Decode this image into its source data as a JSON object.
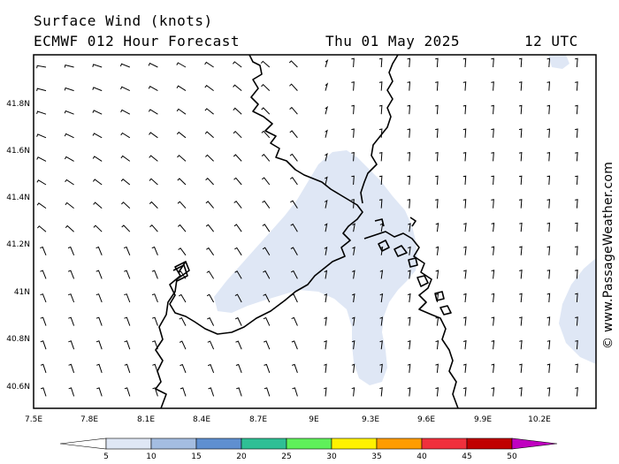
{
  "title": {
    "line1": "Surface Wind (knots)",
    "line2": "ECMWF 012 Hour Forecast",
    "date": "Thu 01 May 2025",
    "time": "12 UTC"
  },
  "axes": {
    "lon_labels": [
      "7.5E",
      "7.8E",
      "8.1E",
      "8.4E",
      "8.7E",
      "9E",
      "9.3E",
      "9.6E",
      "9.9E",
      "10.2E"
    ],
    "lat_labels": [
      "41.8N",
      "41.6N",
      "41.4N",
      "41.2N",
      "41N",
      "40.8N",
      "40.6N"
    ]
  },
  "legend": {
    "labels": [
      "5",
      "10",
      "15",
      "20",
      "25",
      "30",
      "35",
      "40",
      "45",
      "50"
    ],
    "colors": [
      "#ffffff",
      "#dfe7f5",
      "#a4bde1",
      "#5f8fd0",
      "#2fbf95",
      "#5ff05a",
      "#fff200",
      "#ff9c00",
      "#f0303c",
      "#c00000",
      "#c000c0"
    ]
  },
  "credit": "© www.PassageWeather.com"
}
